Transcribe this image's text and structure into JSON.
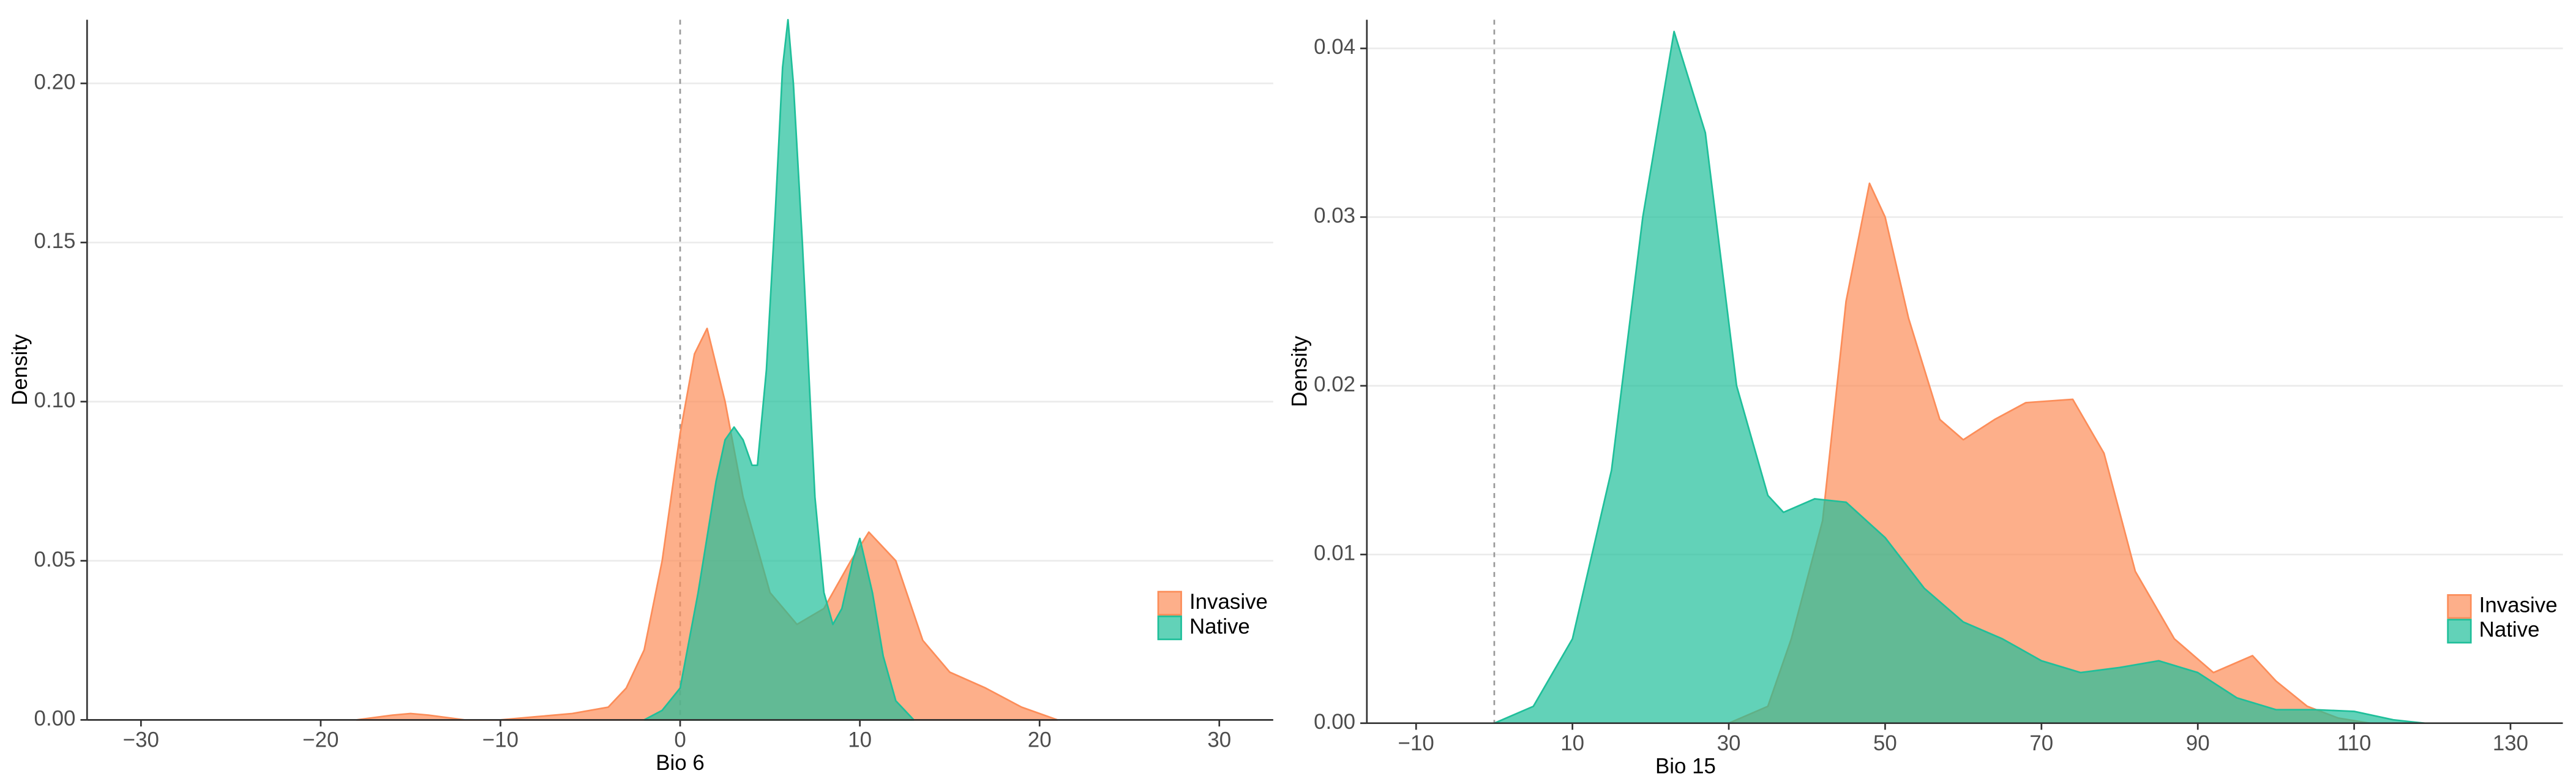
{
  "chart_data": [
    {
      "type": "density",
      "xlabel": "Bio 6",
      "ylabel": "Density",
      "xlim": [
        -33,
        33
      ],
      "ylim": [
        0,
        0.22
      ],
      "xticks": [
        {
          "value": -30,
          "label": "−30"
        },
        {
          "value": -20,
          "label": "−20"
        },
        {
          "value": -10,
          "label": "−10"
        },
        0,
        10,
        20,
        30
      ],
      "yticks": [
        {
          "value": 0,
          "label": "0.00"
        },
        {
          "value": 0.05,
          "label": "0.05"
        },
        {
          "value": 0.1,
          "label": "0.10"
        },
        {
          "value": 0.15,
          "label": "0.15"
        },
        {
          "value": 0.2,
          "label": "0.20"
        }
      ],
      "grid": true,
      "vline": 0,
      "legend": "bottom-right",
      "series": [
        {
          "name": "Invasive",
          "color": "#fc8d59",
          "x": [
            -18,
            -16,
            -15,
            -14,
            -12,
            -10,
            -8,
            -6,
            -4,
            -3,
            -2,
            -1,
            0,
            0.8,
            1.5,
            2.5,
            3.5,
            5,
            6.5,
            8,
            9.5,
            10.5,
            12,
            13.5,
            15,
            17,
            19,
            21
          ],
          "values": [
            0,
            0.0015,
            0.002,
            0.0015,
            0,
            0,
            0.001,
            0.002,
            0.004,
            0.01,
            0.022,
            0.05,
            0.09,
            0.115,
            0.123,
            0.1,
            0.07,
            0.04,
            0.03,
            0.035,
            0.05,
            0.059,
            0.05,
            0.025,
            0.015,
            0.01,
            0.004,
            0
          ]
        },
        {
          "name": "Native",
          "color": "#1fbf9a",
          "x": [
            -2,
            -1,
            0,
            1,
            2,
            2.5,
            3,
            3.5,
            4,
            4.3,
            4.8,
            5.3,
            5.7,
            6,
            6.3,
            6.8,
            7.5,
            8,
            8.5,
            9,
            9.6,
            10,
            10.7,
            11.3,
            12,
            13
          ],
          "values": [
            0,
            0.003,
            0.01,
            0.04,
            0.075,
            0.088,
            0.092,
            0.088,
            0.08,
            0.08,
            0.11,
            0.16,
            0.205,
            0.22,
            0.2,
            0.15,
            0.07,
            0.04,
            0.03,
            0.035,
            0.05,
            0.057,
            0.04,
            0.02,
            0.006,
            0
          ]
        }
      ]
    },
    {
      "type": "density",
      "xlabel": "Bio 15",
      "ylabel": "Density",
      "xlim": [
        -16.3,
        136.7
      ],
      "ylim": [
        0,
        0.0417
      ],
      "xticks": [
        {
          "value": -10,
          "label": "−10"
        },
        10,
        30,
        50,
        70,
        90,
        110,
        130
      ],
      "yticks": [
        {
          "value": 0,
          "label": "0.00"
        },
        0.01,
        0.02,
        0.03,
        0.04
      ],
      "grid": true,
      "vline": 0,
      "legend": "bottom-right",
      "series": [
        {
          "name": "Invasive",
          "color": "#fc8d59",
          "x": [
            30,
            35,
            38,
            42,
            45,
            48,
            50,
            53,
            57,
            60,
            64,
            68,
            74,
            78,
            82,
            87,
            92,
            97,
            100,
            104,
            108,
            112
          ],
          "values": [
            0,
            0.001,
            0.005,
            0.012,
            0.025,
            0.032,
            0.03,
            0.024,
            0.018,
            0.0168,
            0.018,
            0.019,
            0.0192,
            0.016,
            0.009,
            0.005,
            0.003,
            0.004,
            0.0025,
            0.001,
            0.0003,
            0
          ]
        },
        {
          "name": "Native",
          "color": "#1fbf9a",
          "x": [
            0,
            5,
            10,
            15,
            19,
            23,
            27,
            31,
            35,
            37,
            41,
            45,
            50,
            55,
            60,
            65,
            70,
            75,
            80,
            85,
            90,
            95,
            100,
            105,
            110,
            115,
            119
          ],
          "values": [
            0,
            0.001,
            0.005,
            0.015,
            0.03,
            0.041,
            0.035,
            0.02,
            0.0135,
            0.0125,
            0.0133,
            0.0131,
            0.011,
            0.008,
            0.006,
            0.005,
            0.0037,
            0.003,
            0.0033,
            0.0037,
            0.003,
            0.0015,
            0.0008,
            0.0008,
            0.0007,
            0.0002,
            0
          ]
        }
      ]
    }
  ]
}
